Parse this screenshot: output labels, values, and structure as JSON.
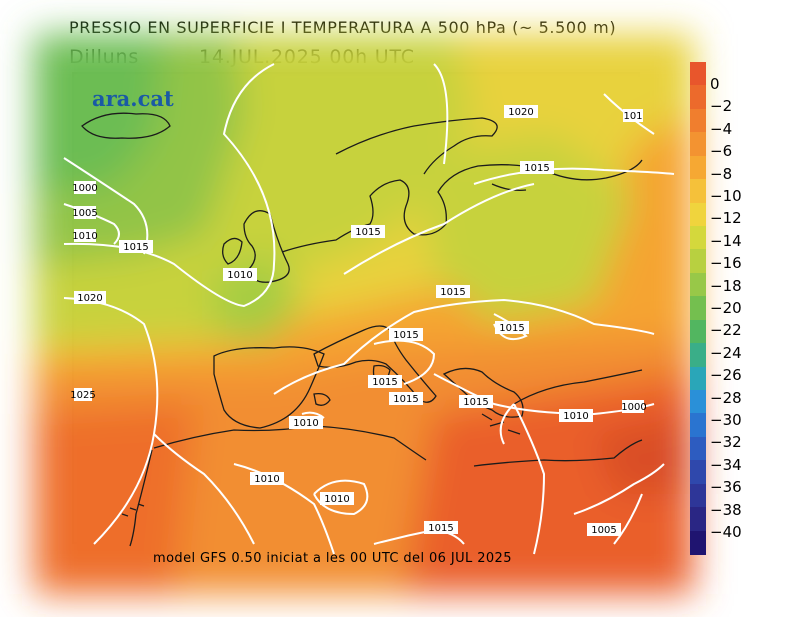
{
  "header": {
    "title": "PRESSIO EN SUPERFICIE I TEMPERATURA A 500 hPa (~ 5.500 m)",
    "day": "Dilluns",
    "datetime": "14.JUL.2025 00h UTC"
  },
  "map": {
    "logo": "ara.cat",
    "isobar_labels": [
      "1020",
      "1015",
      "1015",
      "1015",
      "1010",
      "1015",
      "1015",
      "1015",
      "1015",
      "1010",
      "1010",
      "1010",
      "1010",
      "1015",
      "1015",
      "1005",
      "1020",
      "1015",
      "1010",
      "1005",
      "1000",
      "1025",
      "1000",
      "101"
    ]
  },
  "footer": {
    "model_note": "model GFS 0.50 iniciat a les 00 UTC del 06 JUL 2025"
  },
  "colorbar": {
    "labels": [
      "0",
      "−2",
      "−4",
      "−6",
      "−8",
      "−10",
      "−12",
      "−14",
      "−16",
      "−18",
      "−20",
      "−22",
      "−24",
      "−26",
      "−28",
      "−30",
      "−32",
      "−34",
      "−36",
      "−38",
      "−40"
    ],
    "colors": [
      "#e8562c",
      "#ec6a2c",
      "#f07e2e",
      "#f39331",
      "#f6a833",
      "#f5c13a",
      "#f0d43d",
      "#d4d83c",
      "#b8d040",
      "#98c848",
      "#74bf4f",
      "#52b660",
      "#3aae88",
      "#2aa6b8",
      "#2a90d8",
      "#2a74d0",
      "#2d5cc0",
      "#2f48ac",
      "#2e3698",
      "#2a2684",
      "#1f1470"
    ]
  }
}
